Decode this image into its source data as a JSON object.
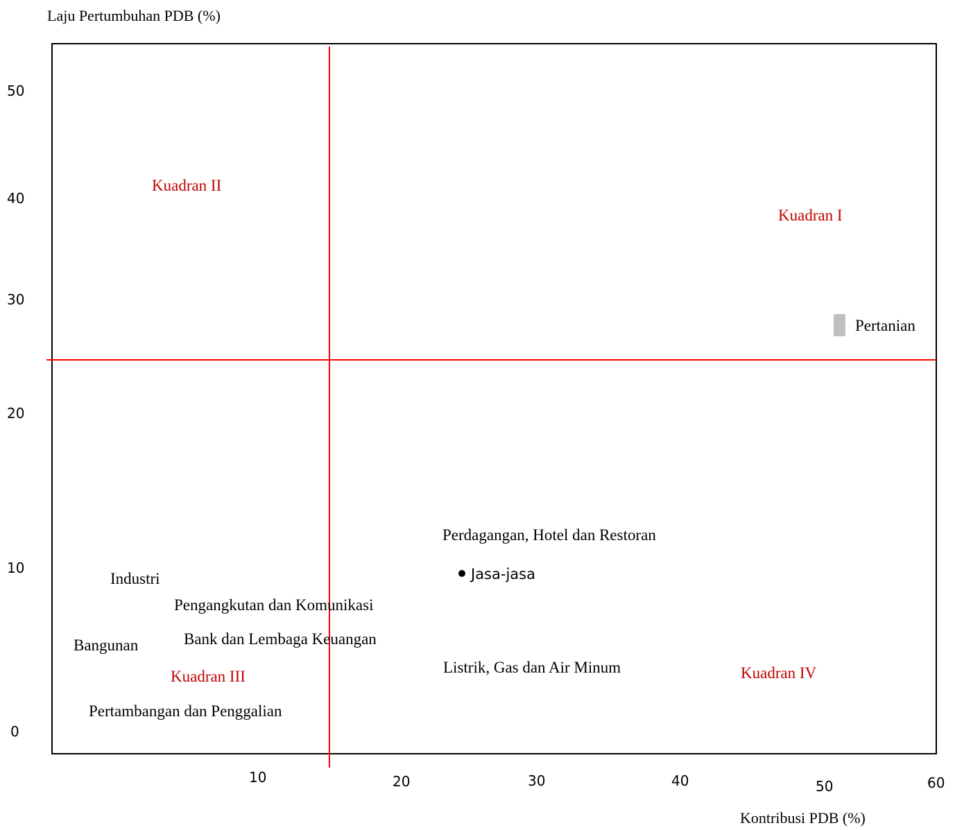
{
  "chart_data": {
    "type": "scatter",
    "title": "",
    "ylabel": "Laju  Pertumbuhan PDB (%)",
    "xlabel": "Kontribusi PDB (%)",
    "x_ticks": [
      "10",
      "20",
      "30",
      "40",
      "50",
      "60"
    ],
    "y_ticks": [
      "50",
      "40",
      "30",
      "20",
      "10",
      "0"
    ],
    "quadrants": [
      {
        "label": "Kuadran I",
        "color": "#c00000"
      },
      {
        "label": "Kuadran II",
        "color": "#c00000"
      },
      {
        "label": "Kuadran  III",
        "color": "#c00000"
      },
      {
        "label": "Kuadran IV",
        "color": "#c00000"
      }
    ],
    "quadrant_line_color": "#ff0000",
    "points": [
      {
        "label": "Pertanian",
        "marker": "rect",
        "marker_color": "#c0c0c0"
      },
      {
        "label": "Jasa-jasa",
        "marker": "dot",
        "marker_color": "#000000"
      }
    ],
    "sector_labels": [
      "Perdagangan, Hotel dan Restoran",
      "Industri",
      "Pengangkutan dan Komunikasi",
      "Bank dan Lembaga Keuangan",
      "Bangunan",
      "Listrik, Gas dan Air Minum",
      "Pertambangan dan Penggalian"
    ],
    "grid": false,
    "legend": "none"
  }
}
